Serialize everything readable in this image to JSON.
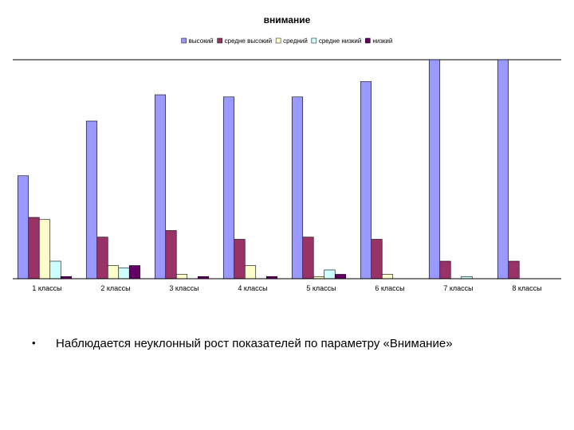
{
  "colors": {
    "series": [
      "#9999FF",
      "#993366",
      "#FFFFCC",
      "#CCFFFF",
      "#660066"
    ]
  },
  "chart_data": {
    "type": "bar",
    "title": "внимание",
    "legend_position": "top",
    "categories": [
      "1 классы",
      "2 классы",
      "3 классы",
      "4 классы",
      "5 классы",
      "6 классы",
      "7 классы",
      "8 классы"
    ],
    "series": [
      {
        "name": "высокий",
        "values": [
          47,
          72,
          84,
          83,
          83,
          90,
          100,
          100
        ]
      },
      {
        "name": "средне высокий",
        "values": [
          28,
          19,
          22,
          18,
          19,
          18,
          8,
          8
        ]
      },
      {
        "name": "средний",
        "values": [
          27,
          6,
          2,
          6,
          1,
          2,
          0,
          0
        ]
      },
      {
        "name": "средне низкий",
        "values": [
          8,
          5,
          0,
          0,
          4,
          0,
          1,
          0
        ]
      },
      {
        "name": "низкий",
        "values": [
          1,
          6,
          1,
          1,
          2,
          0,
          0,
          0
        ]
      }
    ],
    "ylim": [
      0,
      100
    ],
    "grid": false
  },
  "bullet": {
    "marker": "•",
    "text": "Наблюдается неуклонный рост показателей по параметру «Внимание»"
  }
}
